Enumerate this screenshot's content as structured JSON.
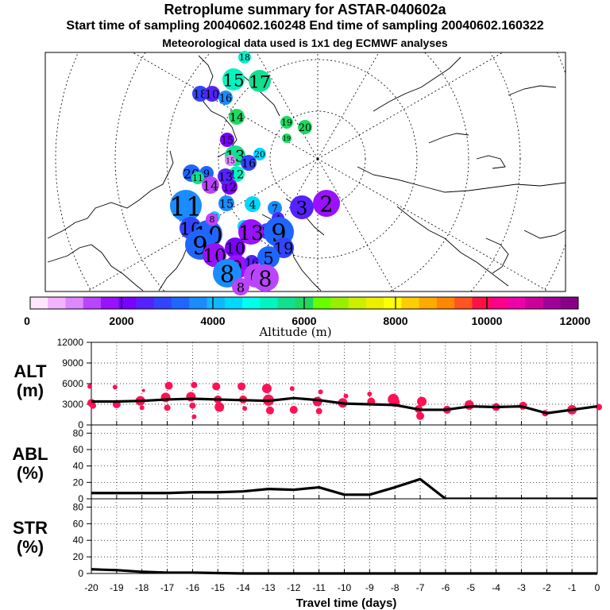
{
  "header": {
    "title": "Retroplume summary for ASTAR-040602a",
    "sampling_line": "Start time of sampling 20040602.160248     End time of sampling 20040602.160322",
    "met_line": "Meteorological data used is 1x1 deg ECMWF analyses"
  },
  "colorbar": {
    "label": "Altitude (m)",
    "ticks": [
      "0",
      "2000",
      "4000",
      "6000",
      "8000",
      "10000",
      "12000"
    ],
    "colors": [
      "#ffe6ff",
      "#f2b3ff",
      "#dd88ff",
      "#bb44ff",
      "#9911ff",
      "#7a00ff",
      "#5522ff",
      "#3344ff",
      "#1f66ff",
      "#1a8cff",
      "#10b8ff",
      "#00d8ff",
      "#00ffee",
      "#00f5c0",
      "#10e090",
      "#20d860",
      "#66ff00",
      "#99ee00",
      "#ccee00",
      "#eeee00",
      "#ffff00",
      "#ffcc00",
      "#ffaa00",
      "#ff8800",
      "#ff5522",
      "#ff1144",
      "#ff0088",
      "#ee00aa",
      "#cc0099",
      "#a0009a",
      "#880088"
    ]
  },
  "map": {
    "labels": [
      {
        "text": "18",
        "size": 12,
        "color": "#00eecc"
      },
      {
        "text": "15",
        "size": 24,
        "color": "#00f5c0"
      },
      {
        "text": "17",
        "size": 24,
        "color": "#10e090"
      },
      {
        "text": "18",
        "size": 16,
        "color": "#3344ff"
      },
      {
        "text": "10",
        "size": 16,
        "color": "#5522ff"
      },
      {
        "text": "16",
        "size": 14,
        "color": "#1a8cff"
      },
      {
        "text": "14",
        "size": 16,
        "color": "#20d860"
      },
      {
        "text": "19",
        "size": 12,
        "color": "#20d860"
      },
      {
        "text": "20",
        "size": 14,
        "color": "#20d860"
      },
      {
        "text": "19",
        "size": 8,
        "color": "#20d860"
      },
      {
        "text": "15",
        "size": 14,
        "color": "#7a00ff"
      },
      {
        "text": "13",
        "size": 22,
        "color": "#10e090"
      },
      {
        "text": "20",
        "size": 12,
        "color": "#00d8ff"
      },
      {
        "text": "15",
        "size": 10,
        "color": "#dd88ff"
      },
      {
        "text": "16",
        "size": 16,
        "color": "#3344ff"
      },
      {
        "text": "20",
        "size": 18,
        "color": "#1f66ff"
      },
      {
        "text": "9",
        "size": 14,
        "color": "#1f66ff"
      },
      {
        "text": "12",
        "size": 16,
        "color": "#00f5c0"
      },
      {
        "text": "11",
        "size": 12,
        "color": "#10e090"
      },
      {
        "text": "14",
        "size": 18,
        "color": "#bb44ff"
      },
      {
        "text": "12",
        "size": 16,
        "color": "#7a00ff"
      },
      {
        "text": "13",
        "size": 16,
        "color": "#5522ff"
      },
      {
        "text": "11",
        "size": 36,
        "color": "#1a8cff"
      },
      {
        "text": "11",
        "size": 10,
        "color": "#00d8ff"
      },
      {
        "text": "10",
        "size": 24,
        "color": "#3344ff"
      },
      {
        "text": "15",
        "size": 16,
        "color": "#1a8cff"
      },
      {
        "text": "4",
        "size": 16,
        "color": "#00d8ff"
      },
      {
        "text": "7",
        "size": 14,
        "color": "#1a8cff"
      },
      {
        "text": "3",
        "size": 26,
        "color": "#5522ff"
      },
      {
        "text": "2",
        "size": 30,
        "color": "#9911ff"
      },
      {
        "text": "1",
        "size": 12,
        "color": "#00d8ff"
      },
      {
        "text": "10",
        "size": 32,
        "color": "#1f66ff"
      },
      {
        "text": "12",
        "size": 16,
        "color": "#3344ff"
      },
      {
        "text": "4",
        "size": 12,
        "color": "#5522ff"
      },
      {
        "text": "13",
        "size": 28,
        "color": "#9911ff"
      },
      {
        "text": "9",
        "size": 34,
        "color": "#1f66ff"
      },
      {
        "text": "8",
        "size": 12,
        "color": "#bb44ff"
      },
      {
        "text": "9",
        "size": 34,
        "color": "#1f66ff"
      },
      {
        "text": "10",
        "size": 26,
        "color": "#9911ff"
      },
      {
        "text": "10",
        "size": 22,
        "color": "#7a00ff"
      },
      {
        "text": "19",
        "size": 22,
        "color": "#3344ff"
      },
      {
        "text": "5",
        "size": 24,
        "color": "#1f66ff"
      },
      {
        "text": "9",
        "size": 26,
        "color": "#9911ff"
      },
      {
        "text": "16",
        "size": 14,
        "color": "#5522ff"
      },
      {
        "text": "8",
        "size": 32,
        "color": "#1a8cff"
      },
      {
        "text": "6",
        "size": 26,
        "color": "#bb44ff"
      },
      {
        "text": "8",
        "size": 30,
        "color": "#bb44ff"
      },
      {
        "text": "8",
        "size": 18,
        "color": "#bb44ff"
      }
    ]
  },
  "chart_data": [
    {
      "type": "line",
      "title": "ALT (m)",
      "label_line1": "ALT",
      "label_line2": "(m)",
      "xlabel": "Travel time (days)",
      "x_ticks": [
        "-20",
        "-19",
        "-18",
        "-17",
        "-16",
        "-15",
        "-14",
        "-13",
        "-12",
        "-11",
        "-10",
        "-9",
        "-8",
        "-7",
        "-6",
        "-5",
        "-4",
        "-3",
        "-2",
        "-1",
        "0"
      ],
      "xlim": [
        -20,
        0
      ],
      "ylim": [
        0,
        12000
      ],
      "y_ticks": [
        "0",
        "3000",
        "6000",
        "9000",
        "12000"
      ],
      "grid": "dotted",
      "mean_line": {
        "x": [
          -20,
          -19,
          -18,
          -17,
          -16,
          -15,
          -14,
          -13,
          -12,
          -11,
          -10,
          -9,
          -8,
          -7,
          -6,
          -5,
          -4,
          -3,
          -2,
          -1,
          0
        ],
        "y": [
          3400,
          3400,
          3500,
          3700,
          3800,
          3700,
          3600,
          3500,
          3900,
          3600,
          3100,
          3000,
          2900,
          2200,
          2200,
          2700,
          2600,
          2700,
          1700,
          2200,
          2700
        ]
      },
      "scatter": {
        "x": [
          -20,
          -20,
          -20,
          -19,
          -19,
          -18,
          -18,
          -18,
          -17,
          -17,
          -17,
          -16,
          -16,
          -16,
          -16,
          -15,
          -15,
          -15,
          -14,
          -14,
          -14,
          -13,
          -13,
          -13,
          -12,
          -12,
          -11,
          -11,
          -11,
          -10,
          -10,
          -9,
          -9,
          -8,
          -8,
          -7,
          -7,
          -7,
          -6,
          -5,
          -4,
          -3,
          -2,
          -1,
          0
        ],
        "y": [
          5600,
          3200,
          2800,
          5500,
          3000,
          5000,
          3500,
          2500,
          5700,
          4000,
          2500,
          5800,
          4100,
          2800,
          1200,
          5600,
          3700,
          2600,
          5600,
          3700,
          2400,
          5300,
          3600,
          2100,
          5300,
          2200,
          4800,
          3400,
          2000,
          4200,
          3200,
          4500,
          3400,
          3700,
          3300,
          3400,
          2300,
          1300,
          2200,
          2900,
          2600,
          2800,
          1700,
          2200,
          2600
        ],
        "size": [
          3,
          5,
          4,
          3,
          5,
          2,
          6,
          3,
          5,
          6,
          4,
          4,
          6,
          4,
          3,
          5,
          5,
          6,
          5,
          5,
          3,
          6,
          7,
          5,
          3,
          5,
          3,
          6,
          4,
          3,
          6,
          3,
          5,
          7,
          6,
          6,
          5,
          5,
          5,
          6,
          5,
          5,
          4,
          6,
          4
        ]
      }
    },
    {
      "type": "line",
      "title": "ABL (%)",
      "label_line1": "ABL",
      "label_line2": "(%)",
      "xlim": [
        -20,
        0
      ],
      "ylim": [
        0,
        90
      ],
      "y_ticks": [
        "0",
        "20",
        "40",
        "60",
        "80"
      ],
      "grid": "dotted",
      "series": [
        {
          "name": "ABL",
          "x": [
            -20,
            -19,
            -18,
            -17,
            -16,
            -15,
            -14,
            -13,
            -12,
            -11,
            -10,
            -9,
            -8,
            -7,
            -6,
            -5,
            -4,
            -3,
            -2,
            -1,
            0
          ],
          "y": [
            7,
            7,
            7,
            7,
            8,
            8,
            9,
            12,
            11,
            14,
            5,
            5,
            14,
            24,
            0,
            0,
            0,
            0,
            0,
            0,
            0
          ]
        }
      ]
    },
    {
      "type": "line",
      "title": "STR (%)",
      "label_line1": "STR",
      "label_line2": "(%)",
      "xlim": [
        -20,
        0
      ],
      "ylim": [
        0,
        90
      ],
      "y_ticks": [
        "0",
        "20",
        "40",
        "60",
        "80"
      ],
      "grid": "dotted",
      "series": [
        {
          "name": "STR",
          "x": [
            -20,
            -19,
            -18,
            -17,
            -16,
            -15,
            -14,
            -13,
            -12,
            -11,
            -10,
            -9,
            -8,
            -7,
            -6,
            -5,
            -4,
            -3,
            -2,
            -1,
            0
          ],
          "y": [
            5,
            4,
            2,
            1,
            1,
            0.5,
            0,
            0,
            0,
            0,
            0,
            0,
            0,
            0,
            0,
            0,
            0,
            0,
            0,
            0,
            0
          ]
        }
      ]
    }
  ]
}
